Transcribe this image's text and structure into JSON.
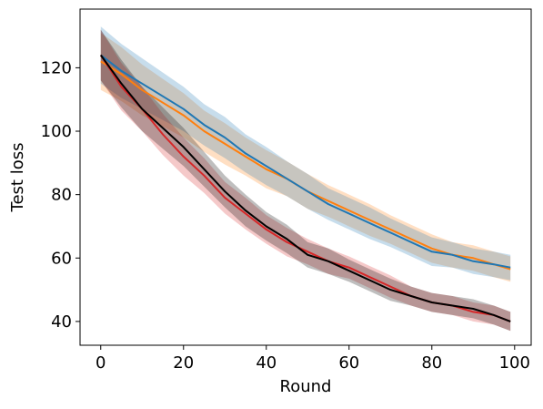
{
  "chart_data": {
    "type": "line",
    "title": "",
    "xlabel": "Round",
    "ylabel": "Test loss",
    "xlim": [
      -5,
      104
    ],
    "ylim": [
      32.5,
      138.5
    ],
    "xticks": [
      0,
      20,
      40,
      60,
      80,
      100
    ],
    "yticks": [
      40,
      60,
      80,
      100,
      120
    ],
    "grid": false,
    "legend": "none",
    "x": [
      0,
      5,
      10,
      15,
      20,
      25,
      30,
      35,
      40,
      45,
      50,
      55,
      60,
      65,
      70,
      75,
      80,
      85,
      90,
      95,
      99
    ],
    "series": [
      {
        "color": "#ff7f0e",
        "values": [
          122,
          118,
          113,
          109,
          105,
          100,
          96,
          92,
          88,
          85,
          81,
          78,
          75,
          72,
          69,
          66,
          63,
          61,
          60,
          58,
          56.5
        ],
        "band_halfwidth": [
          9,
          8.5,
          8,
          7.5,
          7,
          6.5,
          6.5,
          6,
          6,
          5.5,
          5.5,
          5,
          5,
          5,
          4.5,
          4.5,
          4.5,
          4,
          4,
          4,
          4
        ]
      },
      {
        "color": "#1f77b4",
        "values": [
          124,
          119,
          115,
          111,
          107,
          102,
          98,
          93,
          89,
          85,
          81,
          77,
          74,
          71,
          68,
          65,
          62,
          61,
          59,
          58,
          57
        ],
        "band_halfwidth": [
          9,
          8.5,
          8,
          7.5,
          7,
          6.5,
          6.5,
          6,
          6,
          5.5,
          5.5,
          5,
          5,
          5,
          4.5,
          4.5,
          4.5,
          4,
          4,
          4,
          4
        ]
      },
      {
        "color": "#d62728",
        "values": [
          124,
          114,
          107,
          99,
          92,
          86,
          79,
          74,
          69,
          65,
          62,
          59,
          57,
          54,
          51,
          48,
          46,
          45,
          43,
          42,
          40
        ],
        "band_halfwidth": [
          8,
          7.5,
          7,
          6.5,
          6,
          5.5,
          5,
          5,
          4.5,
          4.5,
          4,
          4,
          3.5,
          3.5,
          3.5,
          3,
          3,
          3,
          3,
          3,
          3
        ]
      },
      {
        "color": "#000000",
        "values": [
          124,
          115,
          107,
          101,
          95,
          88,
          81,
          75,
          70,
          66,
          61,
          59,
          56,
          53,
          50,
          48,
          46,
          45,
          44,
          42,
          40
        ],
        "band_halfwidth": [
          8,
          7.5,
          7,
          6.5,
          6,
          5.5,
          5,
          5,
          4.5,
          4.5,
          4,
          4,
          3.5,
          3.5,
          3.5,
          3,
          3,
          3,
          3,
          3,
          3
        ]
      }
    ]
  }
}
